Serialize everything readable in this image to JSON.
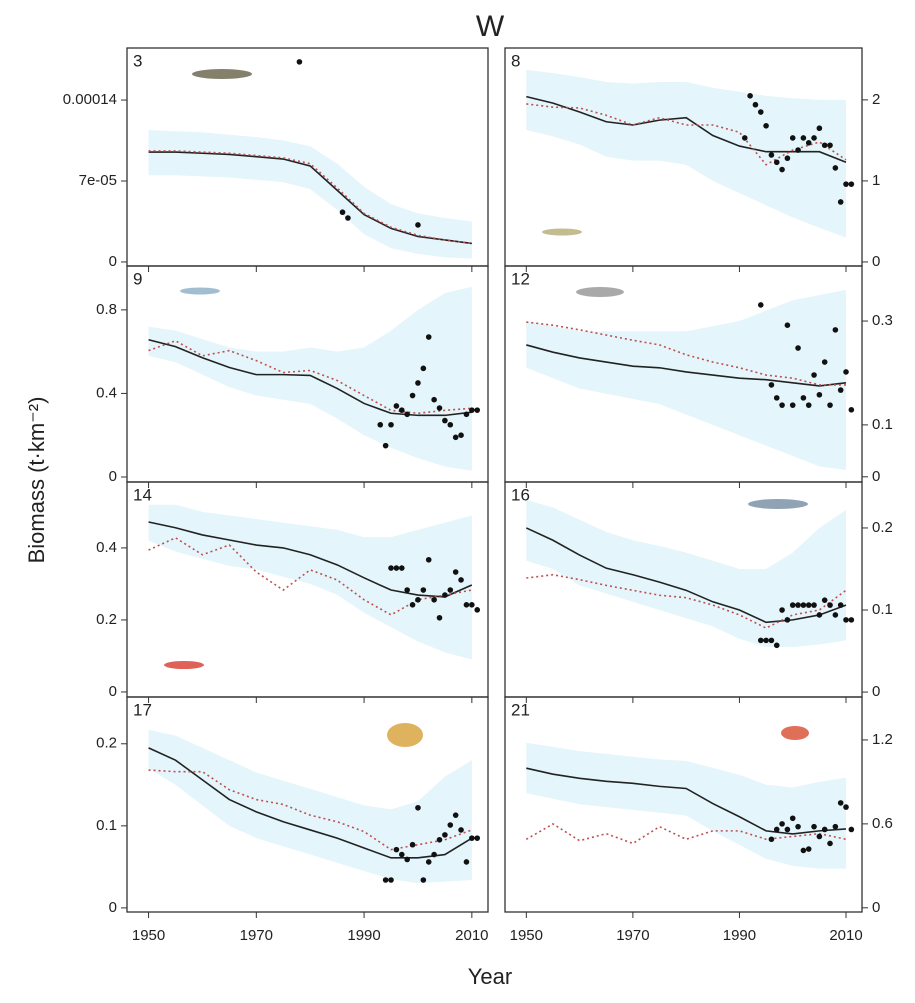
{
  "title": "W",
  "xlabel": "Year",
  "ylabel": "Biomass (t·km⁻²)",
  "chart_data": [
    {
      "type": "line",
      "label": "3",
      "yaxis": "left",
      "xlim": [
        1946,
        2013
      ],
      "ylim": [
        -3.5e-06,
        0.000185
      ],
      "xticks": [
        1950,
        1970,
        1990,
        2010
      ],
      "yticks": [
        0,
        {
          "value": 7e-05,
          "label": "7e-05"
        },
        0.00014
      ],
      "x": [
        1950,
        1955,
        1960,
        1965,
        1970,
        1975,
        1980,
        1985,
        1990,
        1995,
        2000,
        2005,
        2010
      ],
      "band": {
        "color": "#e4f5fb",
        "low": [
          7.5e-05,
          7.5e-05,
          7.4e-05,
          7.3e-05,
          7.1e-05,
          6.9e-05,
          6.3e-05,
          4.5e-05,
          2.4e-05,
          1.2e-05,
          7e-06,
          4e-06,
          3e-06
        ],
        "high": [
          0.000114,
          0.000113,
          0.000112,
          0.00011,
          0.000108,
          0.000105,
          0.0001,
          8.5e-05,
          6.5e-05,
          5e-05,
          4.2e-05,
          3.8e-05,
          3.5e-05
        ]
      },
      "series": [
        {
          "color": "#222222",
          "dash": "solid",
          "values": [
            9.5e-05,
            9.5e-05,
            9.4e-05,
            9.3e-05,
            9.1e-05,
            8.9e-05,
            8.3e-05,
            6.2e-05,
            4.1e-05,
            2.9e-05,
            2.2e-05,
            1.9e-05,
            1.6e-05
          ]
        },
        {
          "color": "#c0504d",
          "dash": "dotted",
          "values": [
            9.6e-05,
            9.6e-05,
            9.5e-05,
            9.4e-05,
            9.2e-05,
            9e-05,
            8.5e-05,
            6.4e-05,
            4.2e-05,
            3e-05,
            2.3e-05,
            1.9e-05,
            1.6e-05
          ]
        }
      ],
      "points": {
        "color": "#111111",
        "x": [
          1978,
          1986,
          1987,
          2000
        ],
        "y": [
          0.000173,
          4.3e-05,
          3.8e-05,
          3.2e-05
        ]
      }
    },
    {
      "type": "line",
      "label": "8",
      "yaxis": "right",
      "xlim": [
        1946,
        2013
      ],
      "ylim": [
        -0.05,
        2.64
      ],
      "xticks": [
        1950,
        1970,
        1990,
        2010
      ],
      "yticks": [
        0,
        1,
        2
      ],
      "x": [
        1950,
        1955,
        1960,
        1965,
        1970,
        1975,
        1980,
        1985,
        1990,
        1995,
        2000,
        2005,
        2010
      ],
      "band": {
        "color": "#e4f5fb",
        "low": [
          1.63,
          1.55,
          1.45,
          1.3,
          1.25,
          1.25,
          1.2,
          1.0,
          0.85,
          0.7,
          0.55,
          0.42,
          0.3
        ],
        "high": [
          2.37,
          2.33,
          2.28,
          2.22,
          2.2,
          2.22,
          2.22,
          2.15,
          2.1,
          2.05,
          2.02,
          2.0,
          2.0
        ]
      },
      "series": [
        {
          "color": "#222222",
          "dash": "solid",
          "values": [
            2.04,
            1.96,
            1.85,
            1.73,
            1.69,
            1.75,
            1.78,
            1.56,
            1.43,
            1.36,
            1.36,
            1.36,
            1.23
          ]
        },
        {
          "color": "#c0504d",
          "dash": "dotted",
          "values": [
            1.95,
            1.91,
            1.9,
            1.81,
            1.69,
            1.78,
            1.69,
            1.69,
            1.6,
            1.2,
            1.38,
            1.48,
            1.26
          ]
        }
      ],
      "points": {
        "color": "#111111",
        "x": [
          1991,
          1992,
          1993,
          1994,
          1995,
          1996,
          1997,
          1998,
          1999,
          2000,
          2001,
          2002,
          2003,
          2004,
          2005,
          2006,
          2007,
          2008,
          2009,
          2010,
          2011
        ],
        "y": [
          1.53,
          2.05,
          1.94,
          1.85,
          1.68,
          1.32,
          1.23,
          1.14,
          1.28,
          1.53,
          1.38,
          1.53,
          1.47,
          1.53,
          1.65,
          1.44,
          1.44,
          1.16,
          0.74,
          0.96,
          0.96
        ]
      }
    },
    {
      "type": "line",
      "label": "9",
      "yaxis": "left",
      "xlim": [
        1946,
        2013
      ],
      "ylim": [
        -0.024,
        1.01
      ],
      "xticks": [
        1950,
        1970,
        1990,
        2010
      ],
      "yticks": [
        0,
        0.4,
        0.8
      ],
      "x": [
        1950,
        1955,
        1960,
        1965,
        1970,
        1975,
        1980,
        1985,
        1990,
        1995,
        2000,
        2005,
        2010
      ],
      "band": {
        "color": "#e4f5fb",
        "low": [
          0.58,
          0.55,
          0.49,
          0.43,
          0.39,
          0.37,
          0.35,
          0.28,
          0.2,
          0.14,
          0.09,
          0.05,
          0.03
        ],
        "high": [
          0.72,
          0.7,
          0.66,
          0.62,
          0.6,
          0.6,
          0.62,
          0.6,
          0.62,
          0.7,
          0.8,
          0.88,
          0.91
        ]
      },
      "series": [
        {
          "color": "#222222",
          "dash": "solid",
          "values": [
            0.657,
            0.624,
            0.571,
            0.524,
            0.49,
            0.49,
            0.486,
            0.424,
            0.352,
            0.305,
            0.295,
            0.295,
            0.31
          ]
        },
        {
          "color": "#c0504d",
          "dash": "dotted",
          "values": [
            0.605,
            0.652,
            0.58,
            0.605,
            0.557,
            0.5,
            0.51,
            0.462,
            0.39,
            0.319,
            0.305,
            0.319,
            0.329
          ]
        }
      ],
      "points": {
        "color": "#111111",
        "x": [
          1993,
          1994,
          1995,
          1996,
          1997,
          1998,
          1999,
          2000,
          2001,
          2002,
          2003,
          2004,
          2005,
          2006,
          2007,
          2008,
          2009,
          2010,
          2011
        ],
        "y": [
          0.25,
          0.15,
          0.25,
          0.34,
          0.32,
          0.3,
          0.39,
          0.45,
          0.52,
          0.67,
          0.37,
          0.33,
          0.27,
          0.25,
          0.19,
          0.2,
          0.3,
          0.32,
          0.32
        ]
      }
    },
    {
      "type": "line",
      "label": "12",
      "yaxis": "right",
      "xlim": [
        1946,
        2013
      ],
      "ylim": [
        -0.01,
        0.406
      ],
      "xticks": [
        1950,
        1970,
        1990,
        2010
      ],
      "yticks": [
        0,
        0.1,
        0.3
      ],
      "x": [
        1950,
        1955,
        1960,
        1965,
        1970,
        1975,
        1980,
        1985,
        1990,
        1995,
        2000,
        2005,
        2010
      ],
      "band": {
        "color": "#e4f5fb",
        "low": [
          0.21,
          0.19,
          0.17,
          0.16,
          0.15,
          0.14,
          0.12,
          0.1,
          0.08,
          0.06,
          0.04,
          0.02,
          0.013
        ],
        "high": [
          0.3,
          0.29,
          0.28,
          0.28,
          0.28,
          0.28,
          0.28,
          0.29,
          0.3,
          0.32,
          0.34,
          0.35,
          0.36
        ]
      },
      "series": [
        {
          "color": "#222222",
          "dash": "solid",
          "values": [
            0.254,
            0.24,
            0.229,
            0.221,
            0.213,
            0.21,
            0.202,
            0.196,
            0.19,
            0.187,
            0.181,
            0.175,
            0.181
          ]
        },
        {
          "color": "#c0504d",
          "dash": "dotted",
          "values": [
            0.298,
            0.292,
            0.283,
            0.273,
            0.263,
            0.254,
            0.235,
            0.221,
            0.21,
            0.196,
            0.19,
            0.177,
            0.177
          ]
        }
      ],
      "points": {
        "color": "#111111",
        "x": [
          1994,
          1996,
          1997,
          1998,
          1999,
          2000,
          2001,
          2002,
          2003,
          2004,
          2005,
          2006,
          2007,
          2008,
          2009,
          2010,
          2011
        ],
        "y": [
          0.331,
          0.177,
          0.152,
          0.138,
          0.292,
          0.138,
          0.248,
          0.152,
          0.138,
          0.196,
          0.158,
          0.221,
          0.138,
          0.283,
          0.167,
          0.202,
          0.129
        ]
      }
    },
    {
      "type": "line",
      "label": "14",
      "yaxis": "left",
      "xlim": [
        1946,
        2013
      ],
      "ylim": [
        -0.014,
        0.583
      ],
      "xticks": [
        1950,
        1970,
        1990,
        2010
      ],
      "yticks": [
        0,
        0.2,
        0.4
      ],
      "x": [
        1950,
        1955,
        1960,
        1965,
        1970,
        1975,
        1980,
        1985,
        1990,
        1995,
        2000,
        2005,
        2010
      ],
      "band": {
        "color": "#e4f5fb",
        "low": [
          0.42,
          0.39,
          0.37,
          0.35,
          0.34,
          0.32,
          0.3,
          0.27,
          0.22,
          0.18,
          0.14,
          0.11,
          0.09
        ],
        "high": [
          0.52,
          0.52,
          0.5,
          0.49,
          0.48,
          0.47,
          0.46,
          0.45,
          0.43,
          0.43,
          0.45,
          0.47,
          0.49
        ]
      },
      "series": [
        {
          "color": "#222222",
          "dash": "solid",
          "values": [
            0.472,
            0.456,
            0.436,
            0.422,
            0.408,
            0.4,
            0.381,
            0.353,
            0.317,
            0.283,
            0.269,
            0.264,
            0.297
          ]
        },
        {
          "color": "#c0504d",
          "dash": "dotted",
          "values": [
            0.394,
            0.428,
            0.381,
            0.408,
            0.333,
            0.283,
            0.339,
            0.311,
            0.256,
            0.214,
            0.256,
            0.269,
            0.283
          ]
        }
      ],
      "points": {
        "color": "#111111",
        "x": [
          1995,
          1996,
          1997,
          1998,
          1999,
          2000,
          2001,
          2002,
          2003,
          2004,
          2005,
          2006,
          2007,
          2008,
          2009,
          2010,
          2011
        ],
        "y": [
          0.344,
          0.344,
          0.344,
          0.283,
          0.242,
          0.256,
          0.283,
          0.367,
          0.256,
          0.206,
          0.269,
          0.283,
          0.333,
          0.311,
          0.242,
          0.242,
          0.228
        ]
      }
    },
    {
      "type": "line",
      "label": "16",
      "yaxis": "right",
      "xlim": [
        1946,
        2013
      ],
      "ylim": [
        -0.006,
        0.256
      ],
      "xticks": [
        1950,
        1970,
        1990,
        2010
      ],
      "yticks": [
        0,
        0.1,
        0.2
      ],
      "x": [
        1950,
        1955,
        1960,
        1965,
        1970,
        1975,
        1980,
        1985,
        1990,
        1995,
        2000,
        2005,
        2010
      ],
      "band": {
        "color": "#e4f5fb",
        "low": [
          0.16,
          0.15,
          0.13,
          0.12,
          0.11,
          0.1,
          0.09,
          0.08,
          0.065,
          0.055,
          0.055,
          0.058,
          0.063
        ],
        "high": [
          0.234,
          0.225,
          0.21,
          0.195,
          0.185,
          0.178,
          0.17,
          0.16,
          0.15,
          0.15,
          0.17,
          0.2,
          0.222
        ]
      },
      "series": [
        {
          "color": "#222222",
          "dash": "solid",
          "values": [
            0.2,
            0.185,
            0.167,
            0.151,
            0.143,
            0.134,
            0.124,
            0.11,
            0.1,
            0.085,
            0.088,
            0.094,
            0.106
          ]
        },
        {
          "color": "#c0504d",
          "dash": "dotted",
          "values": [
            0.139,
            0.143,
            0.137,
            0.13,
            0.124,
            0.118,
            0.115,
            0.106,
            0.094,
            0.078,
            0.094,
            0.1,
            0.124
          ]
        }
      ],
      "points": {
        "color": "#111111",
        "x": [
          1994,
          1995,
          1996,
          1997,
          1998,
          1999,
          2000,
          2001,
          2002,
          2003,
          2004,
          2005,
          2006,
          2007,
          2008,
          2009,
          2010,
          2011
        ],
        "y": [
          0.063,
          0.063,
          0.063,
          0.057,
          0.1,
          0.088,
          0.106,
          0.106,
          0.106,
          0.106,
          0.106,
          0.094,
          0.112,
          0.106,
          0.094,
          0.106,
          0.088,
          0.088
        ]
      }
    },
    {
      "type": "line",
      "label": "17",
      "yaxis": "left",
      "xlim": [
        1946,
        2013
      ],
      "ylim": [
        -0.005,
        0.257
      ],
      "xticks": [
        1950,
        1970,
        1990,
        2010
      ],
      "yticks": [
        0,
        0.1,
        0.2
      ],
      "x": [
        1950,
        1955,
        1960,
        1965,
        1970,
        1975,
        1980,
        1985,
        1990,
        1995,
        2000,
        2005,
        2010
      ],
      "band": {
        "color": "#e4f5fb",
        "low": [
          0.17,
          0.15,
          0.125,
          0.1,
          0.085,
          0.075,
          0.065,
          0.055,
          0.045,
          0.035,
          0.03,
          0.032,
          0.034
        ],
        "high": [
          0.217,
          0.21,
          0.195,
          0.18,
          0.165,
          0.155,
          0.145,
          0.135,
          0.125,
          0.12,
          0.13,
          0.16,
          0.18
        ]
      },
      "series": [
        {
          "color": "#222222",
          "dash": "solid",
          "values": [
            0.195,
            0.18,
            0.156,
            0.132,
            0.117,
            0.105,
            0.095,
            0.085,
            0.073,
            0.061,
            0.061,
            0.065,
            0.085
          ]
        },
        {
          "color": "#c0504d",
          "dash": "dotted",
          "values": [
            0.168,
            0.166,
            0.166,
            0.144,
            0.132,
            0.126,
            0.113,
            0.105,
            0.093,
            0.071,
            0.077,
            0.083,
            0.095
          ]
        }
      ],
      "points": {
        "color": "#111111",
        "x": [
          1994,
          1995,
          1996,
          1997,
          1998,
          1999,
          2000,
          2001,
          2002,
          2003,
          2004,
          2005,
          2006,
          2007,
          2008,
          2009,
          2010,
          2011
        ],
        "y": [
          0.034,
          0.034,
          0.071,
          0.065,
          0.059,
          0.077,
          0.122,
          0.034,
          0.056,
          0.065,
          0.083,
          0.089,
          0.101,
          0.113,
          0.095,
          0.056,
          0.085,
          0.085
        ]
      }
    },
    {
      "type": "line",
      "label": "21",
      "yaxis": "right",
      "xlim": [
        1946,
        2013
      ],
      "ylim": [
        -0.03,
        1.507
      ],
      "xticks": [
        1950,
        1970,
        1990,
        2010
      ],
      "yticks": [
        0,
        0.6,
        1.2
      ],
      "x": [
        1950,
        1955,
        1960,
        1965,
        1970,
        1975,
        1980,
        1985,
        1990,
        1995,
        2000,
        2005,
        2010
      ],
      "band": {
        "color": "#e4f5fb",
        "low": [
          0.82,
          0.78,
          0.74,
          0.72,
          0.7,
          0.68,
          0.66,
          0.55,
          0.45,
          0.35,
          0.3,
          0.28,
          0.28
        ],
        "high": [
          1.18,
          1.15,
          1.12,
          1.1,
          1.08,
          1.06,
          1.05,
          1.0,
          0.95,
          0.88,
          0.86,
          0.9,
          0.93
        ]
      },
      "series": [
        {
          "color": "#222222",
          "dash": "solid",
          "values": [
            0.998,
            0.955,
            0.926,
            0.904,
            0.89,
            0.868,
            0.853,
            0.745,
            0.651,
            0.55,
            0.528,
            0.55,
            0.564
          ]
        },
        {
          "color": "#c0504d",
          "dash": "dotted",
          "values": [
            0.49,
            0.6,
            0.48,
            0.53,
            0.46,
            0.58,
            0.49,
            0.55,
            0.55,
            0.49,
            0.51,
            0.53,
            0.49
          ]
        }
      ],
      "points": {
        "color": "#111111",
        "x": [
          1996,
          1997,
          1998,
          1999,
          2000,
          2001,
          2002,
          2003,
          2004,
          2005,
          2006,
          2007,
          2008,
          2009,
          2010,
          2011
        ],
        "y": [
          0.49,
          0.56,
          0.6,
          0.56,
          0.64,
          0.58,
          0.41,
          0.42,
          0.58,
          0.51,
          0.56,
          0.46,
          0.58,
          0.75,
          0.72,
          0.56
        ]
      }
    }
  ]
}
